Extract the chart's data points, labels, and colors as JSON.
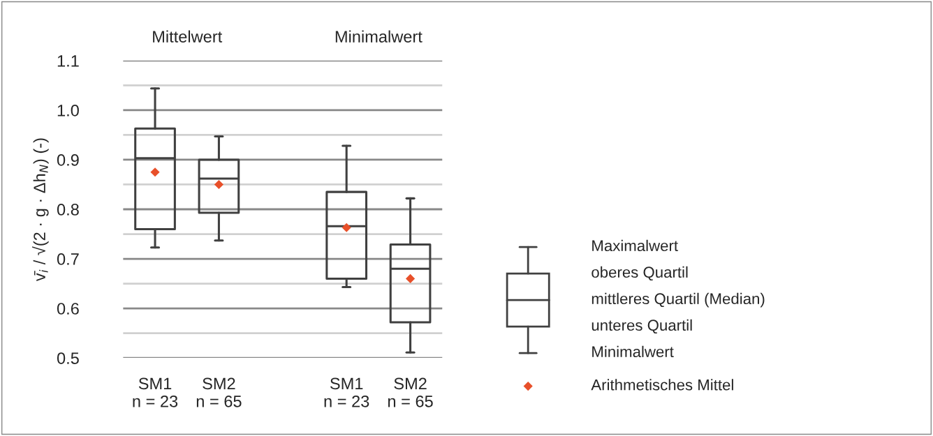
{
  "chart_data": {
    "type": "box",
    "categories": [
      "SM1\nn = 23",
      "SM2\nn = 65",
      null,
      "SM1\nn = 23",
      "SM2\nn = 65"
    ],
    "ylabel": "v̄$_{i}$ / √(2 · g · Δh$_{N}$) (-)",
    "ylim": [
      0.5,
      1.1
    ],
    "yticks": [
      0.5,
      {
        "value": 0.55,
        "label": null
      },
      0.6,
      {
        "value": 0.65,
        "label": null
      },
      0.7,
      {
        "value": 0.75,
        "label": null
      },
      0.8,
      {
        "value": 0.85,
        "label": null
      },
      0.9,
      {
        "value": 0.95,
        "label": null
      },
      {
        "value": 1.0,
        "label": "1.0"
      },
      {
        "value": 1.05,
        "label": null
      },
      1.1
    ],
    "grid": "y",
    "legend": "right",
    "series": [
      {
        "color": "#404040",
        "boxes": [
          {
            "low": 0.723,
            "q1": 0.76,
            "median": 0.903,
            "q3": 0.963,
            "high": 1.044
          },
          {
            "low": 0.737,
            "q1": 0.793,
            "median": 0.862,
            "q3": 0.9,
            "high": 0.947
          },
          null,
          {
            "low": 0.643,
            "q1": 0.66,
            "median": 0.766,
            "q3": 0.835,
            "high": 0.928
          },
          {
            "low": 0.511,
            "q1": 0.572,
            "median": 0.68,
            "q3": 0.729,
            "high": 0.822
          }
        ]
      },
      {
        "type": "scatter",
        "name": "Arithmetisches Mittel",
        "color": "#e8502a",
        "marker": "diamond",
        "values": [
          0.875,
          0.85,
          null,
          0.763,
          0.66
        ]
      }
    ],
    "annotations": [
      "Mittelwert",
      "Minimalwert",
      "Maximalwert",
      "oberes Quartil",
      "mittleres Quartil (Median)",
      "unteres Quartil",
      "Minimalwert"
    ]
  }
}
